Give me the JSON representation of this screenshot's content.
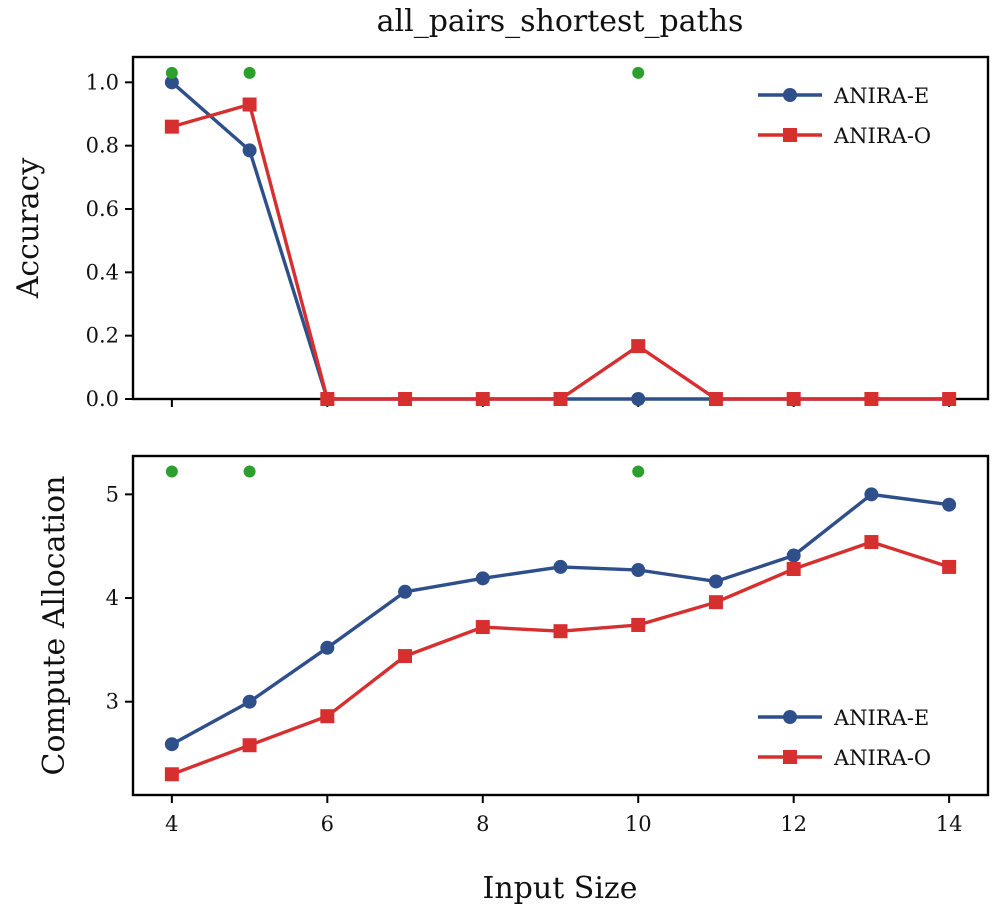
{
  "figure": {
    "title": "all_pairs_shortest_paths",
    "xlabel": "Input Size"
  },
  "colors": {
    "anira_e": "#2f4f8a",
    "anira_o": "#d62f2f",
    "marker_dot": "#2ca02c"
  },
  "chart_data": [
    {
      "type": "line",
      "panel": "top",
      "title": "all_pairs_shortest_paths",
      "xlabel": "",
      "ylabel": "Accuracy",
      "xlim": [
        3.5,
        14.5
      ],
      "ylim": [
        0.0,
        1.08
      ],
      "xticks": [
        4,
        6,
        8,
        10,
        12,
        14
      ],
      "xtick_labels_visible": false,
      "yticks": [
        0.0,
        0.2,
        0.4,
        0.6,
        0.8,
        1.0
      ],
      "ytick_labels": [
        "0.0",
        "0.2",
        "0.4",
        "0.6",
        "0.8",
        "1.0"
      ],
      "x": [
        4,
        5,
        6,
        7,
        8,
        9,
        10,
        11,
        12,
        13,
        14
      ],
      "series": [
        {
          "name": "ANIRA-E",
          "marker": "circle",
          "color_key": "anira_e",
          "values": [
            1.0,
            0.785,
            0.0,
            0.0,
            0.0,
            0.0,
            0.0,
            0.0,
            0.0,
            0.0,
            0.0
          ]
        },
        {
          "name": "ANIRA-O",
          "marker": "square",
          "color_key": "anira_o",
          "values": [
            0.86,
            0.93,
            0.0,
            0.0,
            0.0,
            0.0,
            0.167,
            0.0,
            0.0,
            0.0,
            0.0
          ]
        }
      ],
      "highlight_points": {
        "x": [
          4,
          5,
          10
        ],
        "y": 1.03
      },
      "legend": {
        "position": "top-right",
        "entries": [
          "ANIRA-E",
          "ANIRA-O"
        ]
      }
    },
    {
      "type": "line",
      "panel": "bottom",
      "xlabel": "Input Size",
      "ylabel": "Compute Allocation",
      "xlim": [
        3.5,
        14.5
      ],
      "ylim": [
        2.1,
        5.37
      ],
      "xticks": [
        4,
        6,
        8,
        10,
        12,
        14
      ],
      "xtick_labels": [
        "4",
        "6",
        "8",
        "10",
        "12",
        "14"
      ],
      "yticks": [
        3,
        4,
        5
      ],
      "ytick_labels": [
        "3",
        "4",
        "5"
      ],
      "x": [
        4,
        5,
        6,
        7,
        8,
        9,
        10,
        11,
        12,
        13,
        14
      ],
      "series": [
        {
          "name": "ANIRA-E",
          "marker": "circle",
          "color_key": "anira_e",
          "values": [
            2.59,
            3.0,
            3.52,
            4.06,
            4.19,
            4.3,
            4.27,
            4.16,
            4.41,
            5.0,
            4.9
          ]
        },
        {
          "name": "ANIRA-O",
          "marker": "square",
          "color_key": "anira_o",
          "values": [
            2.3,
            2.58,
            2.86,
            3.44,
            3.72,
            3.68,
            3.74,
            3.96,
            4.28,
            4.54,
            4.3
          ]
        }
      ],
      "highlight_points": {
        "x": [
          4,
          5,
          10
        ],
        "y": 5.22
      },
      "legend": {
        "position": "bottom-right",
        "entries": [
          "ANIRA-E",
          "ANIRA-O"
        ]
      }
    }
  ]
}
